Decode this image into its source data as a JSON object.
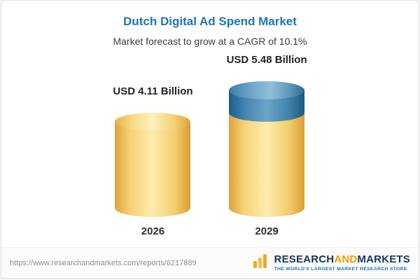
{
  "chart_data": {
    "type": "bar",
    "title": "Dutch Digital Ad Spend Market",
    "subtitle": "Market forecast to grow at a CAGR of 10.1%",
    "categories": [
      "2026",
      "2029"
    ],
    "values": [
      4.11,
      5.48
    ],
    "value_labels": [
      "USD 4.11 Billion",
      "USD 5.48 Billion"
    ],
    "unit": "USD Billion",
    "cagr_pct": "10.1%",
    "legend_position": "none",
    "grid": false,
    "colors": {
      "bar_base": "#f2cc6b",
      "bar_growth_segment": "#3f81ab",
      "title": "#1b75bc"
    }
  },
  "footer": {
    "url": "https://www.researchandmarkets.com/reports/6217889",
    "logo": {
      "word1": "RESEARCH",
      "word2": "AND",
      "word3": "MARKETS",
      "tagline": "THE WORLD'S LARGEST MARKET RESEARCH STORE"
    }
  }
}
